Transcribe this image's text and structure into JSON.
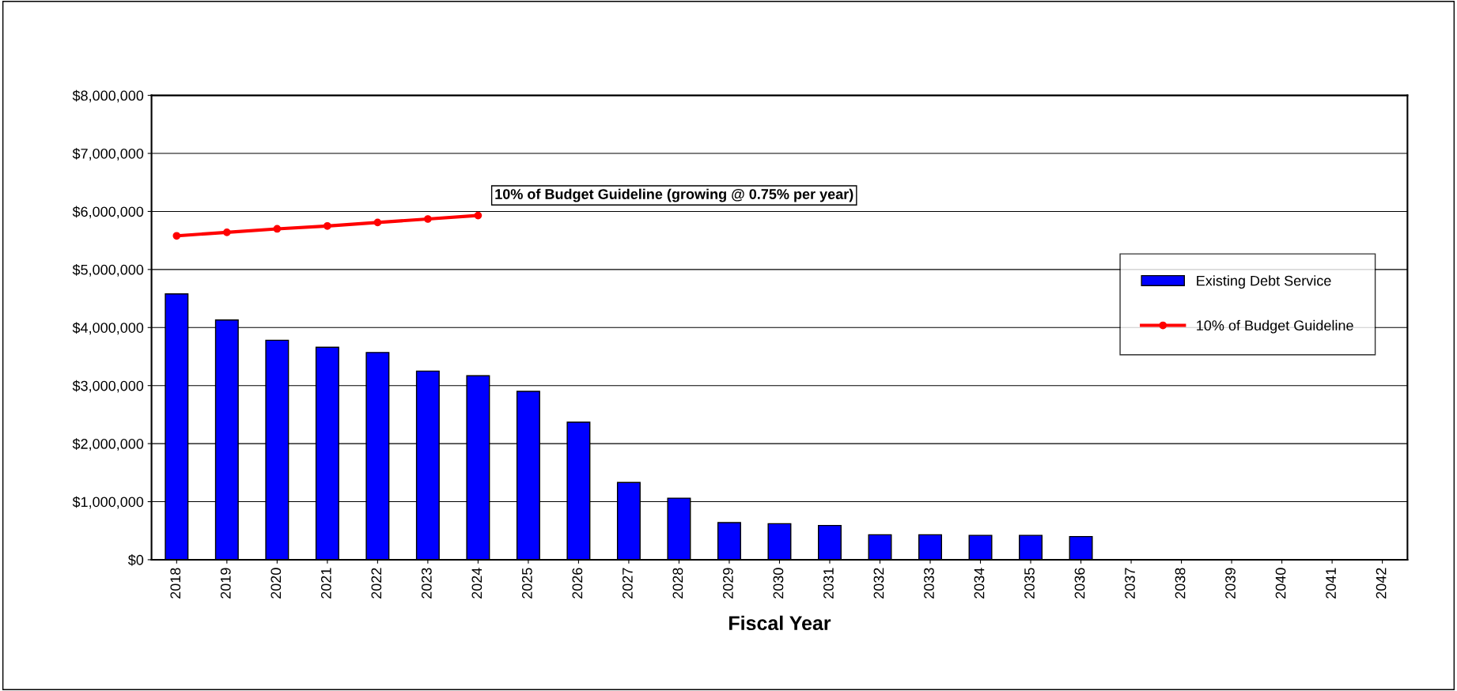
{
  "chart_data": {
    "type": "bar",
    "xlabel": "Fiscal Year",
    "categories": [
      "2018",
      "2019",
      "2020",
      "2021",
      "2022",
      "2023",
      "2024",
      "2025",
      "2026",
      "2027",
      "2028",
      "2029",
      "2030",
      "2031",
      "2032",
      "2033",
      "2034",
      "2035",
      "2036",
      "2037",
      "2038",
      "2039",
      "2040",
      "2041",
      "2042"
    ],
    "series": [
      {
        "name": "Existing Debt Service",
        "color": "#0000ff",
        "values": [
          4580000,
          4130000,
          3780000,
          3660000,
          3570000,
          3250000,
          3170000,
          2900000,
          2370000,
          1330000,
          1060000,
          640000,
          620000,
          590000,
          430000,
          430000,
          420000,
          420000,
          400000,
          0,
          0,
          0,
          0,
          0,
          0
        ]
      },
      {
        "name": "10% of Budget Guideline",
        "type": "line",
        "color": "#ff0000",
        "marker": "circle",
        "values": [
          5580000,
          5640000,
          5700000,
          5750000,
          5810000,
          5870000,
          5930000,
          null,
          null,
          null,
          null,
          null,
          null,
          null,
          null,
          null,
          null,
          null,
          null,
          null,
          null,
          null,
          null,
          null,
          null
        ]
      }
    ],
    "annotations": [
      "10% of Budget Guideline (growing @ 0.75% per year)"
    ],
    "ylim": [
      0,
      8000000
    ],
    "yticks": [
      {
        "value": 0,
        "label": "$0"
      },
      {
        "value": 1000000,
        "label": "$1,000,000"
      },
      {
        "value": 2000000,
        "label": "$2,000,000"
      },
      {
        "value": 3000000,
        "label": "$3,000,000"
      },
      {
        "value": 4000000,
        "label": "$4,000,000"
      },
      {
        "value": 5000000,
        "label": "$5,000,000"
      },
      {
        "value": 6000000,
        "label": "$6,000,000"
      },
      {
        "value": 7000000,
        "label": "$7,000,000"
      },
      {
        "value": 8000000,
        "label": "$8,000,000"
      }
    ],
    "grid": "y",
    "legend": "right"
  }
}
